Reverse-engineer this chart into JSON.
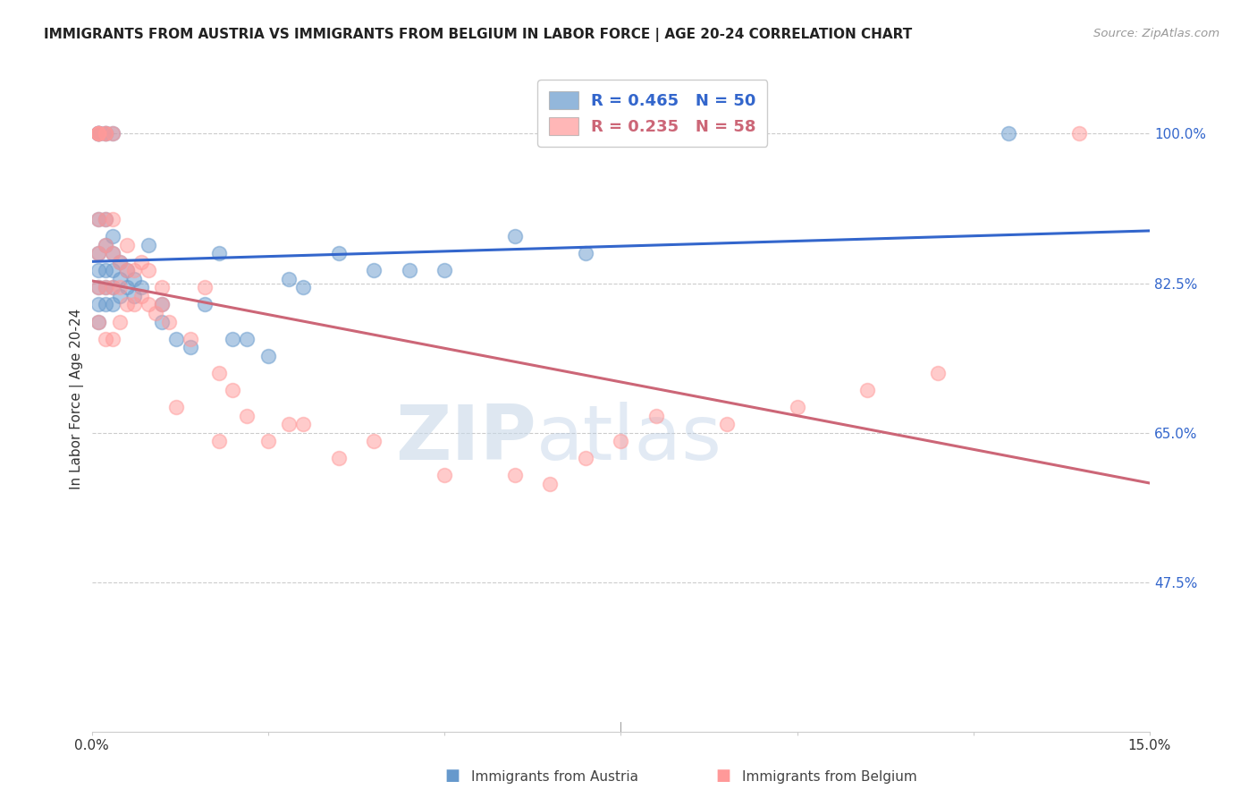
{
  "title": "IMMIGRANTS FROM AUSTRIA VS IMMIGRANTS FROM BELGIUM IN LABOR FORCE | AGE 20-24 CORRELATION CHART",
  "source": "Source: ZipAtlas.com",
  "ylabel": "In Labor Force | Age 20-24",
  "ytick_labels": [
    "100.0%",
    "82.5%",
    "65.0%",
    "47.5%"
  ],
  "ytick_values": [
    1.0,
    0.825,
    0.65,
    0.475
  ],
  "xlim": [
    0.0,
    0.15
  ],
  "ylim": [
    0.3,
    1.08
  ],
  "austria_R": 0.465,
  "austria_N": 50,
  "belgium_R": 0.235,
  "belgium_N": 58,
  "austria_color": "#6699CC",
  "belgium_color": "#FF9999",
  "austria_line_color": "#3366CC",
  "belgium_line_color": "#CC6677",
  "watermark_zip": "ZIP",
  "watermark_atlas": "atlas",
  "austria_x": [
    0.001,
    0.001,
    0.001,
    0.001,
    0.001,
    0.001,
    0.001,
    0.001,
    0.001,
    0.001,
    0.002,
    0.002,
    0.002,
    0.002,
    0.002,
    0.002,
    0.002,
    0.003,
    0.003,
    0.003,
    0.003,
    0.003,
    0.003,
    0.004,
    0.004,
    0.004,
    0.005,
    0.005,
    0.006,
    0.006,
    0.007,
    0.008,
    0.01,
    0.01,
    0.012,
    0.014,
    0.016,
    0.018,
    0.02,
    0.022,
    0.025,
    0.028,
    0.03,
    0.035,
    0.04,
    0.045,
    0.05,
    0.06,
    0.07,
    0.13
  ],
  "austria_y": [
    1.0,
    1.0,
    1.0,
    1.0,
    0.9,
    0.86,
    0.84,
    0.82,
    0.8,
    0.78,
    1.0,
    1.0,
    0.9,
    0.87,
    0.84,
    0.82,
    0.8,
    1.0,
    0.88,
    0.86,
    0.84,
    0.82,
    0.8,
    0.85,
    0.83,
    0.81,
    0.84,
    0.82,
    0.83,
    0.81,
    0.82,
    0.87,
    0.8,
    0.78,
    0.76,
    0.75,
    0.8,
    0.86,
    0.76,
    0.76,
    0.74,
    0.83,
    0.82,
    0.86,
    0.84,
    0.84,
    0.84,
    0.88,
    0.86,
    1.0
  ],
  "belgium_x": [
    0.001,
    0.001,
    0.001,
    0.001,
    0.001,
    0.001,
    0.001,
    0.001,
    0.002,
    0.002,
    0.002,
    0.002,
    0.002,
    0.002,
    0.003,
    0.003,
    0.003,
    0.003,
    0.003,
    0.004,
    0.004,
    0.004,
    0.005,
    0.005,
    0.005,
    0.006,
    0.006,
    0.007,
    0.007,
    0.008,
    0.008,
    0.009,
    0.01,
    0.01,
    0.011,
    0.012,
    0.014,
    0.016,
    0.018,
    0.018,
    0.02,
    0.022,
    0.025,
    0.028,
    0.03,
    0.035,
    0.04,
    0.05,
    0.06,
    0.065,
    0.07,
    0.075,
    0.08,
    0.09,
    0.1,
    0.11,
    0.12,
    0.14
  ],
  "belgium_y": [
    1.0,
    1.0,
    1.0,
    1.0,
    0.9,
    0.86,
    0.82,
    0.78,
    1.0,
    1.0,
    0.9,
    0.87,
    0.82,
    0.76,
    1.0,
    0.9,
    0.86,
    0.82,
    0.76,
    0.85,
    0.82,
    0.78,
    0.87,
    0.84,
    0.8,
    0.84,
    0.8,
    0.85,
    0.81,
    0.84,
    0.8,
    0.79,
    0.82,
    0.8,
    0.78,
    0.68,
    0.76,
    0.82,
    0.64,
    0.72,
    0.7,
    0.67,
    0.64,
    0.66,
    0.66,
    0.62,
    0.64,
    0.6,
    0.6,
    0.59,
    0.62,
    0.64,
    0.67,
    0.66,
    0.68,
    0.7,
    0.72,
    1.0
  ],
  "grid_color": "#cccccc",
  "spine_color": "#cccccc",
  "tick_color": "#888888"
}
